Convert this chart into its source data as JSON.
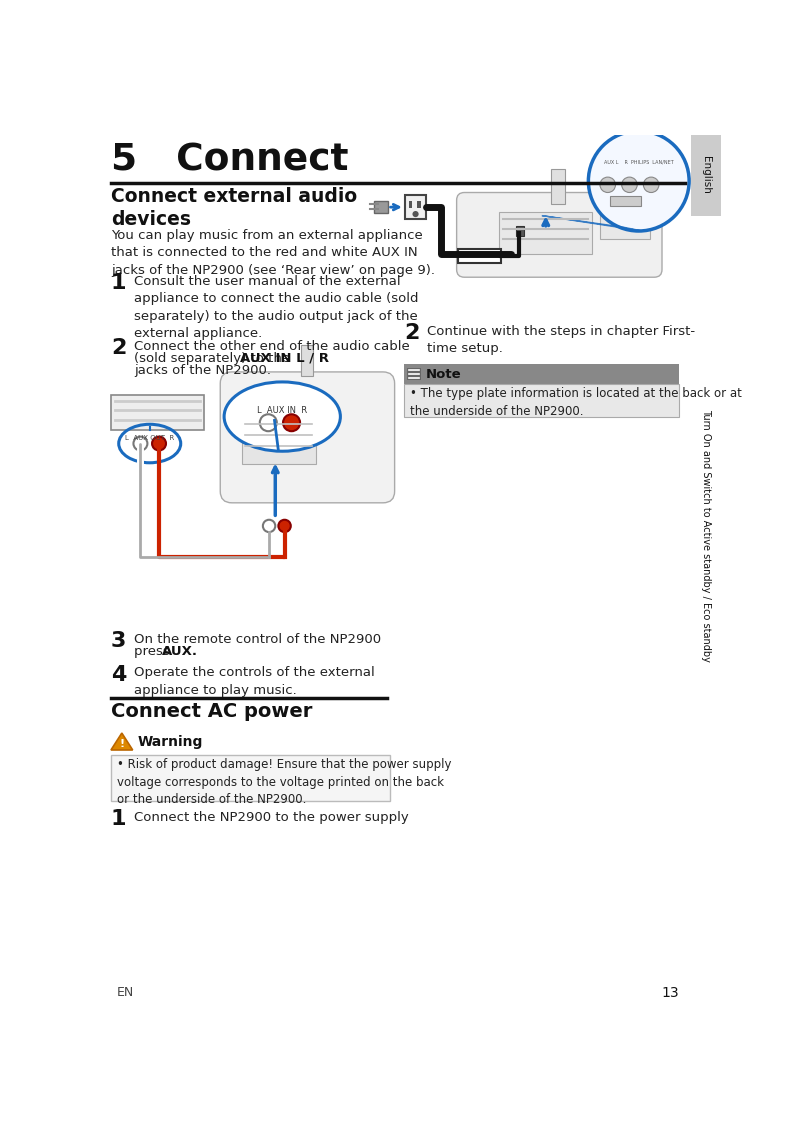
{
  "title": "5   Connect",
  "bg_color": "#ffffff",
  "sidebar_bg": "#cccccc",
  "sidebar_text1": "English",
  "sidebar_text2": "Turn On and Switch to Active standby / Eco standby",
  "page_number": "13",
  "page_label": "EN",
  "section1_title": "Connect external audio\ndevices",
  "section1_body": "You can play music from an external appliance\nthat is connected to the red and white AUX IN\njacks of the NP2900 (see ‘Rear view’ on page 9).",
  "step1_num": "1",
  "step1_text": "Consult the user manual of the external\nappliance to connect the audio cable (sold\nseparately) to the audio output jack of the\nexternal appliance.",
  "step2_num": "2",
  "step2_pre": "Connect the other end of the audio cable\n(sold separately) to the ",
  "step2_bold": "AUX IN L / R",
  "step2_post": "\njacks of the NP2900.",
  "step3_num": "3",
  "step3_pre": "On the remote control of the NP2900\npress ",
  "step3_bold": "AUX",
  "step3_post": ".",
  "step4_num": "4",
  "step4_text": "Operate the controls of the external\nappliance to play music.",
  "section2_title": "Connect AC power",
  "warning_title": "Warning",
  "warning_bullet": "Risk of product damage! Ensure that the power supply\nvoltage corresponds to the voltage printed on the back\nor the underside of the NP2900.",
  "step_ac1_num": "1",
  "step_ac1_text": "Connect the NP2900 to the power supply",
  "right_step2_num": "2",
  "right_step2_text": "Continue with the steps in chapter First-\ntime setup.",
  "note_title": "Note",
  "note_bullet": "The type plate information is located at the back or at\nthe underside of the NP2900.",
  "divider_color": "#111111",
  "note_bg": "#888888",
  "note_body_bg": "#e8e8e8",
  "note_border": "#aaaaaa",
  "warning_bg": "#f5f5f5",
  "warning_border": "#bbbbbb",
  "accent_blue": "#1a6bbf",
  "accent_red": "#cc2200",
  "device_color": "#dddddd",
  "device_border": "#aaaaaa"
}
